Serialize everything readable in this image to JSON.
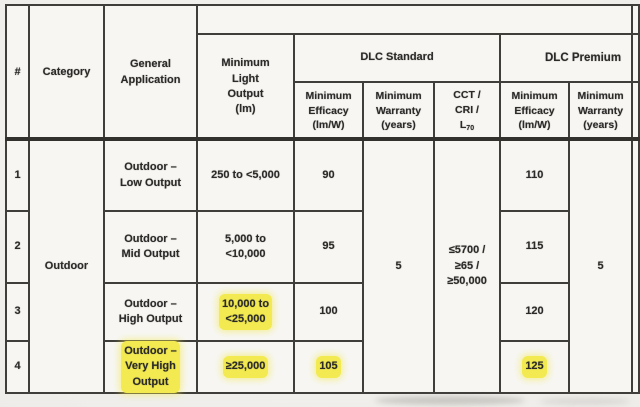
{
  "palette": {
    "highlight": "#f2ea50",
    "border": "#403e3a",
    "text": "#2b2a28",
    "paper": "#f7f6f3"
  },
  "header": {
    "num": "#",
    "category": "Category",
    "general_application": "General\nApplication",
    "min_light_output": "Minimum\nLight\nOutput\n(lm)",
    "dlc_standard": "DLC Standard",
    "dlc_premium": "DLC Premium",
    "min_efficacy_std": "Minimum\nEfficacy\n(lm/W)",
    "min_warranty_std": "Minimum\nWarranty\n(years)",
    "cct_cri_lines": "CCT /\nCRI /\n",
    "l70_base": "L",
    "l70_sub": "70",
    "min_efficacy_prem": "Minimum\nEfficacy\n(lm/W)",
    "min_warranty_prem": "Minimum\nWarranty\n(years)"
  },
  "shared": {
    "category": "Outdoor",
    "std_warranty_years": "5",
    "cct_cri_l70": "≤5700 /\n≥65 /\n≥50,000",
    "premium_warranty_years": "5"
  },
  "rows": [
    {
      "num": "1",
      "application": "Outdoor –\nLow Output",
      "light_output": "250 to <5,000",
      "std_efficacy": "90",
      "premium_efficacy": "110",
      "highlighted_fields": []
    },
    {
      "num": "2",
      "application": "Outdoor –\nMid Output",
      "light_output": "5,000 to\n<10,000",
      "std_efficacy": "95",
      "premium_efficacy": "115",
      "highlighted_fields": []
    },
    {
      "num": "3",
      "application": "Outdoor –\nHigh Output",
      "light_output": "10,000 to\n<25,000",
      "std_efficacy": "100",
      "premium_efficacy": "120",
      "highlighted_fields": [
        "light_output"
      ]
    },
    {
      "num": "4",
      "application": "Outdoor –\nVery High\nOutput",
      "light_output": "≥25,000",
      "std_efficacy": "105",
      "premium_efficacy": "125",
      "highlighted_fields": [
        "application",
        "light_output",
        "std_efficacy",
        "premium_efficacy"
      ]
    }
  ]
}
